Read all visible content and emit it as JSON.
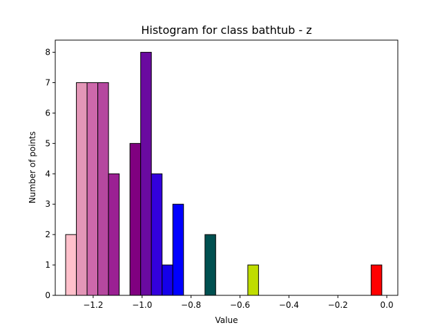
{
  "chart_data": {
    "type": "bar",
    "title": "Histogram for class bathtub - z",
    "xlabel": "Value",
    "ylabel": "Number of points",
    "xlim": [
      -1.355,
      0.045
    ],
    "ylim": [
      0,
      8.4
    ],
    "xticks": [
      -1.2,
      -1.0,
      -0.8,
      -0.6,
      -0.4,
      -0.2,
      0.0
    ],
    "xtick_labels": [
      "−1.2",
      "−1.0",
      "−0.8",
      "−0.6",
      "−0.4",
      "−0.2",
      "0.0"
    ],
    "yticks": [
      0,
      1,
      2,
      3,
      4,
      5,
      6,
      7,
      8
    ],
    "ytick_labels": [
      "0",
      "1",
      "2",
      "3",
      "4",
      "5",
      "6",
      "7",
      "8"
    ],
    "grid": false,
    "bins": [
      {
        "left": -1.3125,
        "right": -1.2687,
        "count": 2,
        "color": "#FFC0CB"
      },
      {
        "left": -1.2687,
        "right": -1.2249,
        "count": 7,
        "color": "#E396B7"
      },
      {
        "left": -1.2249,
        "right": -1.1811,
        "count": 7,
        "color": "#CD68AB"
      },
      {
        "left": -1.1811,
        "right": -1.1373,
        "count": 7,
        "color": "#B5489F"
      },
      {
        "left": -1.1373,
        "right": -1.0935,
        "count": 4,
        "color": "#9B2093"
      },
      {
        "left": -1.0497,
        "right": -1.0059,
        "count": 5,
        "color": "#800080"
      },
      {
        "left": -1.0059,
        "right": -0.9621,
        "count": 8,
        "color": "#6A0AA0"
      },
      {
        "left": -0.9621,
        "right": -0.9183,
        "count": 4,
        "color": "#3300DD"
      },
      {
        "left": -0.9183,
        "right": -0.8745,
        "count": 1,
        "color": "#1500EA"
      },
      {
        "left": -0.8745,
        "right": -0.8307,
        "count": 3,
        "color": "#0000FF"
      },
      {
        "left": -0.7431,
        "right": -0.6993,
        "count": 2,
        "color": "#005050"
      },
      {
        "left": -0.5679,
        "right": -0.5241,
        "count": 1,
        "color": "#BFDD00"
      },
      {
        "left": -0.0641,
        "right": -0.0203,
        "count": 1,
        "color": "#FF0000"
      }
    ]
  }
}
